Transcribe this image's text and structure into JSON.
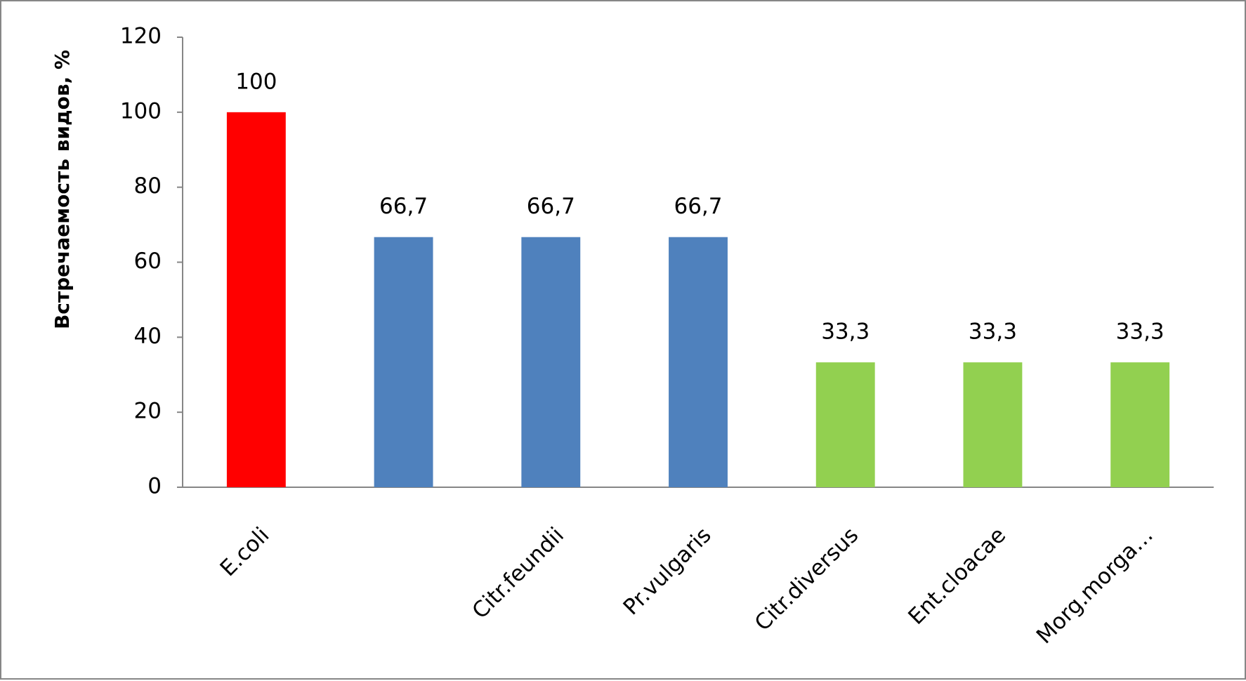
{
  "chart_data": {
    "type": "bar",
    "y_label": "Встречаемость видов, %",
    "categories": [
      "E.coli",
      null,
      "Citr.feundii",
      "Pr.vulgaris",
      "Citr.diversus",
      "Ent.cloacae",
      "Morg.morga…"
    ],
    "values": [
      100,
      66.7,
      66.7,
      66.7,
      33.3,
      33.3,
      33.3
    ],
    "value_labels": [
      "100",
      "66,7",
      "66,7",
      "66,7",
      "33,3",
      "33,3",
      "33,3"
    ],
    "colors": [
      "#ff0000",
      "#4f81bd",
      "#4f81bd",
      "#4f81bd",
      "#92d050",
      "#92d050",
      "#92d050"
    ],
    "ylim": [
      0,
      120
    ],
    "yticks": [
      0,
      20,
      40,
      60,
      80,
      100,
      120
    ],
    "grid": false
  }
}
